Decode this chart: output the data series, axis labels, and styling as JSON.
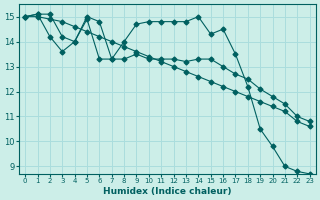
{
  "xlabel": "Humidex (Indice chaleur)",
  "ylabel": "",
  "background_color": "#cceee8",
  "line_color": "#006060",
  "grid_color": "#aadddd",
  "xlim": [
    0,
    23
  ],
  "ylim": [
    9,
    15.5
  ],
  "yticks": [
    9,
    10,
    11,
    12,
    13,
    14,
    15
  ],
  "xticks": [
    0,
    1,
    2,
    3,
    4,
    5,
    6,
    7,
    8,
    9,
    10,
    11,
    12,
    13,
    14,
    15,
    16,
    17,
    18,
    19,
    20,
    21,
    22,
    23
  ],
  "line1_x": [
    0,
    1,
    2,
    3,
    4,
    5,
    6,
    7,
    8,
    9,
    10,
    11,
    12,
    13,
    14,
    15,
    16,
    17,
    18,
    19,
    20,
    21,
    22,
    23
  ],
  "line1_y": [
    15.0,
    15.1,
    15.1,
    14.2,
    14.0,
    15.0,
    14.8,
    13.3,
    14.0,
    14.7,
    14.8,
    14.8,
    14.8,
    14.8,
    15.0,
    14.3,
    14.5,
    13.5,
    12.2,
    10.5,
    9.8,
    9.0,
    8.8,
    8.7
  ],
  "line2_x": [
    0,
    1,
    2,
    3,
    4,
    5,
    6,
    7,
    8,
    9,
    10,
    11,
    12,
    13,
    14,
    15,
    16,
    17,
    18,
    19,
    20,
    21,
    22,
    23
  ],
  "line2_y": [
    15.0,
    15.1,
    14.2,
    13.6,
    14.0,
    14.9,
    13.3,
    13.3,
    13.3,
    13.5,
    13.3,
    13.3,
    13.3,
    13.2,
    13.3,
    13.3,
    13.0,
    12.7,
    12.5,
    12.1,
    11.8,
    11.5,
    11.0,
    10.8
  ],
  "line3_x": [
    0,
    1,
    2,
    3,
    4,
    5,
    6,
    7,
    8,
    9,
    10,
    11,
    12,
    13,
    14,
    15,
    16,
    17,
    18,
    19,
    20,
    21,
    22,
    23
  ],
  "line3_y": [
    15.0,
    15.0,
    14.9,
    14.8,
    14.6,
    14.4,
    14.2,
    14.0,
    13.8,
    13.6,
    13.4,
    13.2,
    13.0,
    12.8,
    12.6,
    12.4,
    12.2,
    12.0,
    11.8,
    11.6,
    11.4,
    11.2,
    10.8,
    10.6
  ]
}
